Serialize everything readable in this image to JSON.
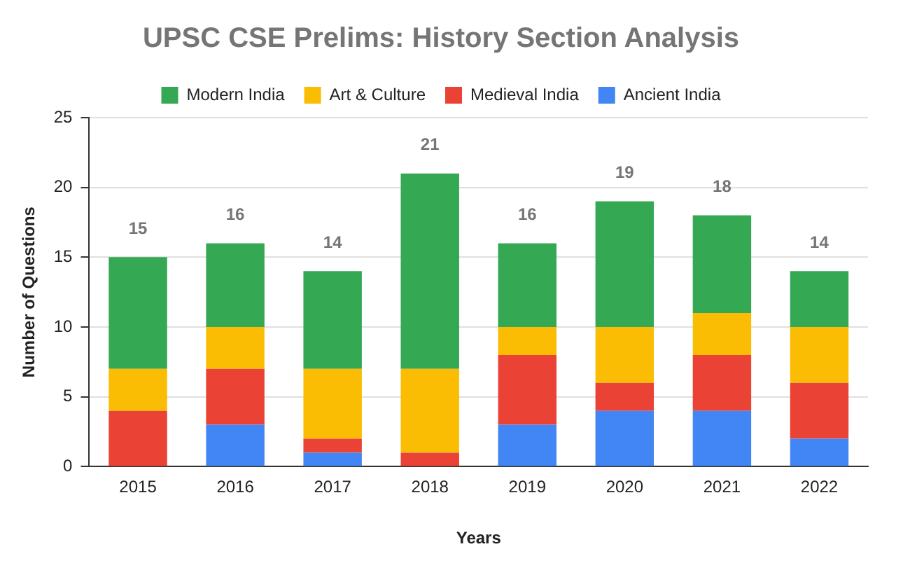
{
  "chart_data": {
    "type": "bar",
    "title": "UPSC CSE Prelims: History Section Analysis",
    "xlabel": "Years",
    "ylabel": "Number of Questions",
    "categories": [
      "2015",
      "2016",
      "2017",
      "2018",
      "2019",
      "2020",
      "2021",
      "2022"
    ],
    "stacked": true,
    "series": [
      {
        "name": "Ancient India",
        "color": "#4285f4",
        "values": [
          0,
          3,
          1,
          0,
          3,
          4,
          4,
          2
        ]
      },
      {
        "name": "Medieval India",
        "color": "#ea4335",
        "values": [
          4,
          4,
          1,
          1,
          5,
          2,
          4,
          4
        ]
      },
      {
        "name": "Art & Culture",
        "color": "#fbbc04",
        "values": [
          3,
          3,
          5,
          6,
          2,
          4,
          3,
          4
        ]
      },
      {
        "name": "Modern India",
        "color": "#34a853",
        "values": [
          8,
          6,
          7,
          14,
          6,
          9,
          7,
          4
        ]
      }
    ],
    "totals": [
      "15",
      "16",
      "14",
      "21",
      "16",
      "19",
      "18",
      "14"
    ],
    "ylim": [
      0,
      25
    ],
    "yticks": [
      0,
      5,
      10,
      15,
      20,
      25
    ],
    "grid": "y",
    "legend": "top"
  }
}
